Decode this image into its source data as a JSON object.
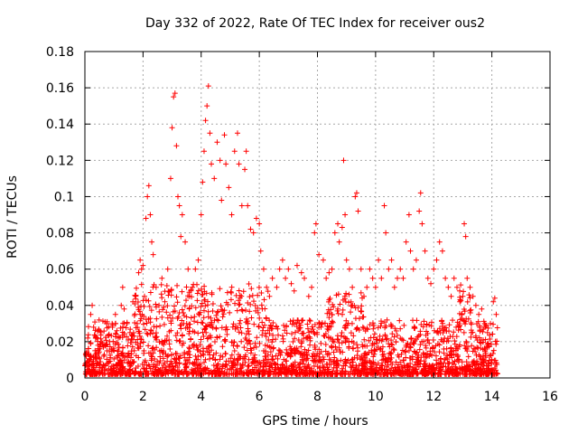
{
  "chart_data": {
    "type": "scatter",
    "title": "Day 332 of 2022, Rate Of TEC Index for receiver ous2",
    "xlabel": "GPS time / hours",
    "ylabel": "ROTI / TECUs",
    "xlim": [
      0,
      16
    ],
    "ylim": [
      0,
      0.18
    ],
    "x_ticks": [
      0,
      2,
      4,
      6,
      8,
      10,
      12,
      14,
      16
    ],
    "y_ticks": [
      0,
      0.02,
      0.04,
      0.06,
      0.08,
      0.1,
      0.12,
      0.14,
      0.16,
      0.18
    ],
    "x_tick_labels": [
      "0",
      "2",
      "4",
      "6",
      "8",
      "10",
      "12",
      "14",
      "16"
    ],
    "y_tick_labels": [
      "0",
      "0.02",
      "0.04",
      "0.06",
      "0.08",
      "0.1",
      "0.12",
      "0.14",
      "0.16",
      "0.18"
    ],
    "grid": true,
    "marker": "+",
    "color": "#ff0000",
    "series": [
      {
        "name": "ROTI",
        "points": [
          [
            0.05,
            0.012
          ],
          [
            0.1,
            0.022
          ],
          [
            0.15,
            0.008
          ],
          [
            0.2,
            0.035
          ],
          [
            0.25,
            0.04
          ],
          [
            0.3,
            0.028
          ],
          [
            0.35,
            0.015
          ],
          [
            0.45,
            0.018
          ],
          [
            0.55,
            0.025
          ],
          [
            0.65,
            0.012
          ],
          [
            0.75,
            0.03
          ],
          [
            0.85,
            0.02
          ],
          [
            0.95,
            0.028
          ],
          [
            1.05,
            0.035
          ],
          [
            1.15,
            0.022
          ],
          [
            1.25,
            0.04
          ],
          [
            1.3,
            0.05
          ],
          [
            1.35,
            0.038
          ],
          [
            1.45,
            0.03
          ],
          [
            1.55,
            0.025
          ],
          [
            1.65,
            0.042
          ],
          [
            1.75,
            0.045
          ],
          [
            1.8,
            0.03
          ],
          [
            1.85,
            0.058
          ],
          [
            1.9,
            0.065
          ],
          [
            1.95,
            0.06
          ],
          [
            2.0,
            0.062
          ],
          [
            2.05,
            0.045
          ],
          [
            2.1,
            0.088
          ],
          [
            2.15,
            0.1
          ],
          [
            2.2,
            0.106
          ],
          [
            2.25,
            0.09
          ],
          [
            2.3,
            0.075
          ],
          [
            2.35,
            0.068
          ],
          [
            2.45,
            0.05
          ],
          [
            2.55,
            0.04
          ],
          [
            2.65,
            0.055
          ],
          [
            2.75,
            0.042
          ],
          [
            2.85,
            0.06
          ],
          [
            2.95,
            0.11
          ],
          [
            3.0,
            0.138
          ],
          [
            3.05,
            0.155
          ],
          [
            3.1,
            0.157
          ],
          [
            3.15,
            0.128
          ],
          [
            3.2,
            0.1
          ],
          [
            3.25,
            0.095
          ],
          [
            3.3,
            0.078
          ],
          [
            3.35,
            0.09
          ],
          [
            3.45,
            0.075
          ],
          [
            3.55,
            0.06
          ],
          [
            3.6,
            0.045
          ],
          [
            3.7,
            0.05
          ],
          [
            3.8,
            0.06
          ],
          [
            3.9,
            0.065
          ],
          [
            4.0,
            0.09
          ],
          [
            4.05,
            0.108
          ],
          [
            4.1,
            0.125
          ],
          [
            4.15,
            0.142
          ],
          [
            4.2,
            0.15
          ],
          [
            4.25,
            0.161
          ],
          [
            4.3,
            0.135
          ],
          [
            4.35,
            0.118
          ],
          [
            4.45,
            0.11
          ],
          [
            4.55,
            0.13
          ],
          [
            4.65,
            0.12
          ],
          [
            4.7,
            0.098
          ],
          [
            4.8,
            0.134
          ],
          [
            4.85,
            0.118
          ],
          [
            4.95,
            0.105
          ],
          [
            5.05,
            0.09
          ],
          [
            5.15,
            0.125
          ],
          [
            5.25,
            0.135
          ],
          [
            5.3,
            0.118
          ],
          [
            5.4,
            0.095
          ],
          [
            5.5,
            0.115
          ],
          [
            5.55,
            0.125
          ],
          [
            5.6,
            0.095
          ],
          [
            5.7,
            0.082
          ],
          [
            5.8,
            0.08
          ],
          [
            5.9,
            0.088
          ],
          [
            6.0,
            0.085
          ],
          [
            6.05,
            0.07
          ],
          [
            6.15,
            0.06
          ],
          [
            6.25,
            0.05
          ],
          [
            6.35,
            0.045
          ],
          [
            6.45,
            0.055
          ],
          [
            6.6,
            0.05
          ],
          [
            6.7,
            0.06
          ],
          [
            6.8,
            0.065
          ],
          [
            6.9,
            0.055
          ],
          [
            7.0,
            0.06
          ],
          [
            7.1,
            0.052
          ],
          [
            7.2,
            0.048
          ],
          [
            7.3,
            0.062
          ],
          [
            7.45,
            0.058
          ],
          [
            7.55,
            0.055
          ],
          [
            7.7,
            0.045
          ],
          [
            7.8,
            0.05
          ],
          [
            7.9,
            0.08
          ],
          [
            7.95,
            0.085
          ],
          [
            8.05,
            0.068
          ],
          [
            8.2,
            0.065
          ],
          [
            8.3,
            0.055
          ],
          [
            8.4,
            0.058
          ],
          [
            8.5,
            0.06
          ],
          [
            8.6,
            0.08
          ],
          [
            8.7,
            0.085
          ],
          [
            8.75,
            0.075
          ],
          [
            8.85,
            0.083
          ],
          [
            8.9,
            0.12
          ],
          [
            8.95,
            0.09
          ],
          [
            9.0,
            0.065
          ],
          [
            9.1,
            0.06
          ],
          [
            9.2,
            0.05
          ],
          [
            9.3,
            0.1
          ],
          [
            9.35,
            0.102
          ],
          [
            9.4,
            0.092
          ],
          [
            9.5,
            0.06
          ],
          [
            9.6,
            0.045
          ],
          [
            9.7,
            0.05
          ],
          [
            9.8,
            0.06
          ],
          [
            9.9,
            0.055
          ],
          [
            10.0,
            0.05
          ],
          [
            10.1,
            0.065
          ],
          [
            10.2,
            0.055
          ],
          [
            10.3,
            0.095
          ],
          [
            10.35,
            0.08
          ],
          [
            10.45,
            0.06
          ],
          [
            10.55,
            0.065
          ],
          [
            10.65,
            0.05
          ],
          [
            10.75,
            0.055
          ],
          [
            10.85,
            0.06
          ],
          [
            10.95,
            0.055
          ],
          [
            11.05,
            0.075
          ],
          [
            11.15,
            0.09
          ],
          [
            11.2,
            0.07
          ],
          [
            11.3,
            0.06
          ],
          [
            11.4,
            0.065
          ],
          [
            11.5,
            0.092
          ],
          [
            11.55,
            0.102
          ],
          [
            11.6,
            0.085
          ],
          [
            11.7,
            0.07
          ],
          [
            11.8,
            0.055
          ],
          [
            11.9,
            0.052
          ],
          [
            12.0,
            0.06
          ],
          [
            12.1,
            0.065
          ],
          [
            12.2,
            0.075
          ],
          [
            12.3,
            0.07
          ],
          [
            12.4,
            0.055
          ],
          [
            12.5,
            0.05
          ],
          [
            12.6,
            0.045
          ],
          [
            12.7,
            0.055
          ],
          [
            12.8,
            0.05
          ],
          [
            12.9,
            0.042
          ],
          [
            13.0,
            0.045
          ],
          [
            13.05,
            0.085
          ],
          [
            13.1,
            0.078
          ],
          [
            13.15,
            0.055
          ],
          [
            13.25,
            0.05
          ],
          [
            13.35,
            0.045
          ],
          [
            13.45,
            0.04
          ],
          [
            13.55,
            0.035
          ],
          [
            13.65,
            0.038
          ],
          [
            13.75,
            0.03
          ],
          [
            13.85,
            0.025
          ],
          [
            13.95,
            0.03
          ],
          [
            14.05,
            0.042
          ],
          [
            14.1,
            0.044
          ],
          [
            14.15,
            0.035
          ]
        ]
      }
    ]
  }
}
